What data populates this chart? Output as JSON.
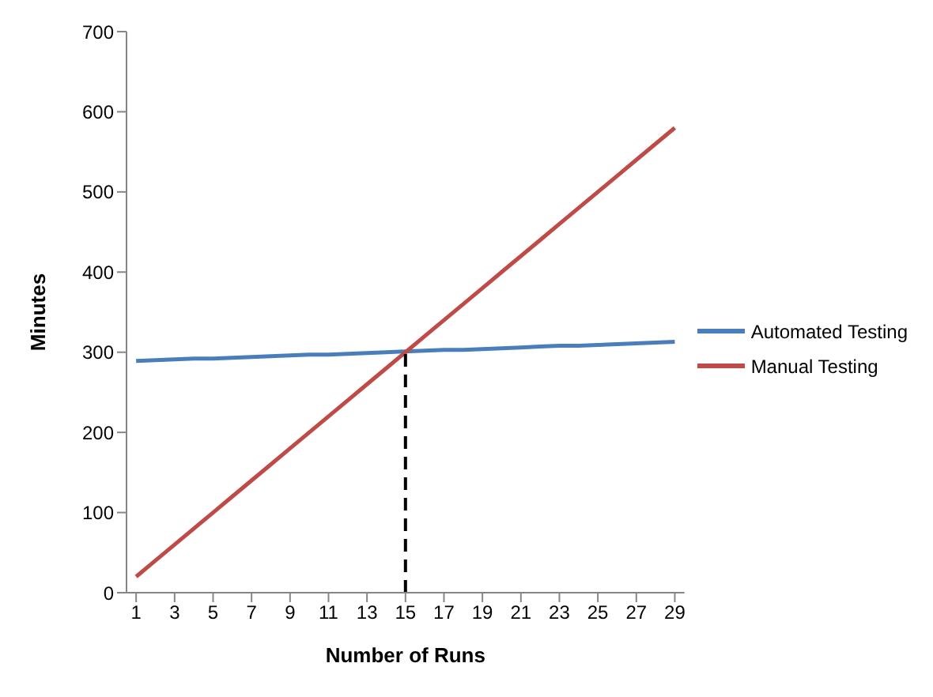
{
  "chart_data": {
    "type": "line",
    "xlabel": "Number of Runs",
    "ylabel": "Minutes",
    "x": [
      1,
      2,
      3,
      4,
      5,
      6,
      7,
      8,
      9,
      10,
      11,
      12,
      13,
      14,
      15,
      16,
      17,
      18,
      19,
      20,
      21,
      22,
      23,
      24,
      25,
      26,
      27,
      28,
      29
    ],
    "xlim": [
      0.5,
      29.5
    ],
    "xticks": [
      1,
      3,
      5,
      7,
      9,
      11,
      13,
      15,
      17,
      19,
      21,
      23,
      25,
      27,
      29
    ],
    "ylim": [
      0,
      700
    ],
    "yticks": [
      0,
      100,
      200,
      300,
      400,
      500,
      600,
      700
    ],
    "grid": false,
    "legend": "right",
    "marker": "none",
    "series": [
      {
        "name": "Automated Testing",
        "color": "#4a7ebb",
        "values": [
          289,
          290,
          291,
          292,
          292,
          293,
          294,
          295,
          296,
          297,
          297,
          298,
          299,
          300,
          301,
          302,
          303,
          303,
          304,
          305,
          306,
          307,
          308,
          308,
          309,
          310,
          311,
          312,
          313
        ]
      },
      {
        "name": "Manual Testing",
        "color": "#be4b48",
        "values": [
          20,
          40,
          60,
          80,
          100,
          120,
          140,
          160,
          180,
          200,
          220,
          240,
          260,
          280,
          300,
          320,
          340,
          360,
          380,
          400,
          420,
          440,
          460,
          480,
          500,
          520,
          540,
          560,
          580
        ]
      },
      {
        "type": "line",
        "color": "#000000",
        "line_style": "dashed",
        "x": [
          15,
          15
        ],
        "values": [
          0,
          300
        ]
      }
    ]
  }
}
